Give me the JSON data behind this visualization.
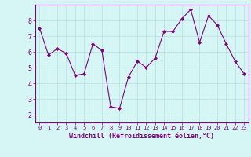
{
  "x": [
    0,
    1,
    2,
    3,
    4,
    5,
    6,
    7,
    8,
    9,
    10,
    11,
    12,
    13,
    14,
    15,
    16,
    17,
    18,
    19,
    20,
    21,
    22,
    23
  ],
  "y": [
    7.5,
    5.8,
    6.2,
    5.9,
    4.5,
    4.6,
    6.5,
    6.1,
    2.5,
    2.4,
    4.4,
    5.4,
    5.0,
    5.6,
    7.3,
    7.3,
    8.1,
    8.7,
    6.6,
    8.3,
    7.7,
    6.5,
    5.4,
    4.6
  ],
  "line_color": "#800080",
  "marker": "D",
  "marker_size": 2.0,
  "bg_color": "#d6f5f5",
  "grid_color": "#b8dede",
  "xlabel": "Windchill (Refroidissement éolien,°C)",
  "xlabel_color": "#800080",
  "ylim": [
    1.5,
    9.0
  ],
  "xlim": [
    -0.5,
    23.5
  ],
  "yticks": [
    2,
    3,
    4,
    5,
    6,
    7,
    8
  ],
  "xticks": [
    0,
    1,
    2,
    3,
    4,
    5,
    6,
    7,
    8,
    9,
    10,
    11,
    12,
    13,
    14,
    15,
    16,
    17,
    18,
    19,
    20,
    21,
    22,
    23
  ],
  "tick_color": "#800080",
  "spine_color": "#800080",
  "xtick_fontsize": 5.0,
  "ytick_fontsize": 6.0,
  "xlabel_fontsize": 6.0
}
